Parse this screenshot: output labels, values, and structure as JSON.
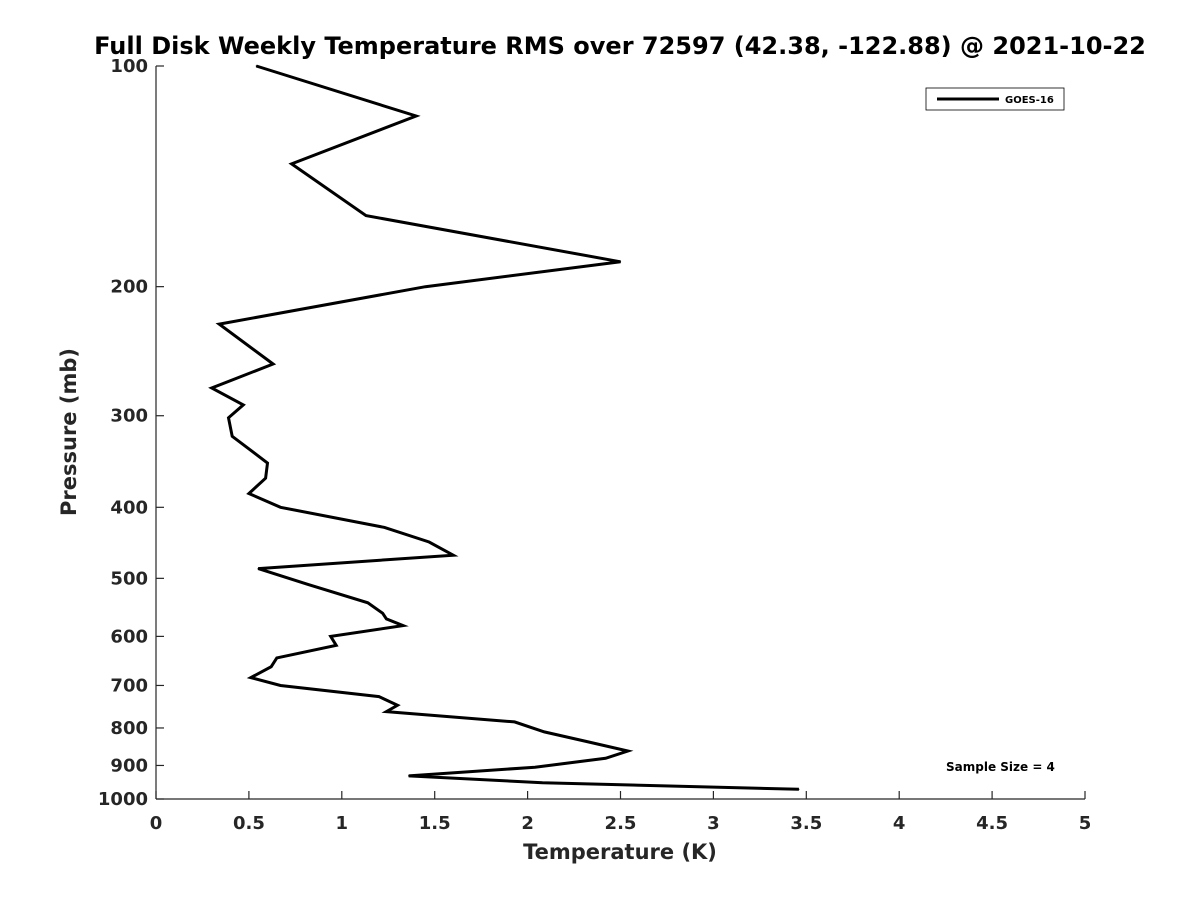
{
  "chart_data": {
    "type": "line",
    "title": "Full Disk Weekly Temperature RMS over 72597 (42.38, -122.88) @ 2021-10-22",
    "xlabel": "Temperature (K)",
    "ylabel": "Pressure (mb)",
    "xlim": [
      0,
      5
    ],
    "ylim": [
      1000,
      100
    ],
    "yscale": "log",
    "y_reversed": true,
    "x_ticks": [
      0,
      0.5,
      1,
      1.5,
      2,
      2.5,
      3,
      3.5,
      4,
      4.5,
      5
    ],
    "x_tick_labels": [
      "0",
      "0.5",
      "1",
      "1.5",
      "2",
      "2.5",
      "3",
      "3.5",
      "4",
      "4.5",
      "5"
    ],
    "y_ticks": [
      100,
      200,
      300,
      400,
      500,
      600,
      700,
      800,
      900,
      1000
    ],
    "y_tick_labels": [
      "100",
      "200",
      "300",
      "400",
      "500",
      "600",
      "700",
      "800",
      "900",
      "1000"
    ],
    "grid": false,
    "legend_position": "top-right",
    "series": [
      {
        "name": "GOES-16",
        "color": "#000000",
        "x": [
          0.54,
          1.4,
          0.73,
          1.13,
          2.5,
          1.45,
          0.34,
          0.63,
          0.3,
          0.47,
          0.39,
          0.41,
          0.6,
          0.59,
          0.5,
          0.67,
          1.23,
          1.47,
          1.6,
          0.55,
          0.82,
          1.14,
          1.22,
          1.24,
          1.33,
          0.94,
          0.97,
          0.65,
          0.62,
          0.51,
          0.67,
          1.2,
          1.3,
          1.24,
          1.93,
          2.09,
          2.32,
          2.54,
          2.42,
          2.04,
          1.36,
          2.08,
          3.46
        ],
        "y": [
          100,
          117,
          136,
          160,
          185,
          200,
          225,
          255,
          275,
          290,
          302,
          320,
          348,
          365,
          383,
          400,
          426,
          446,
          465,
          485,
          510,
          540,
          558,
          568,
          580,
          600,
          617,
          642,
          660,
          683,
          700,
          725,
          745,
          760,
          785,
          810,
          835,
          860,
          880,
          905,
          930,
          950,
          970
        ]
      }
    ],
    "annotations": [
      "Sample Size = 4"
    ]
  }
}
